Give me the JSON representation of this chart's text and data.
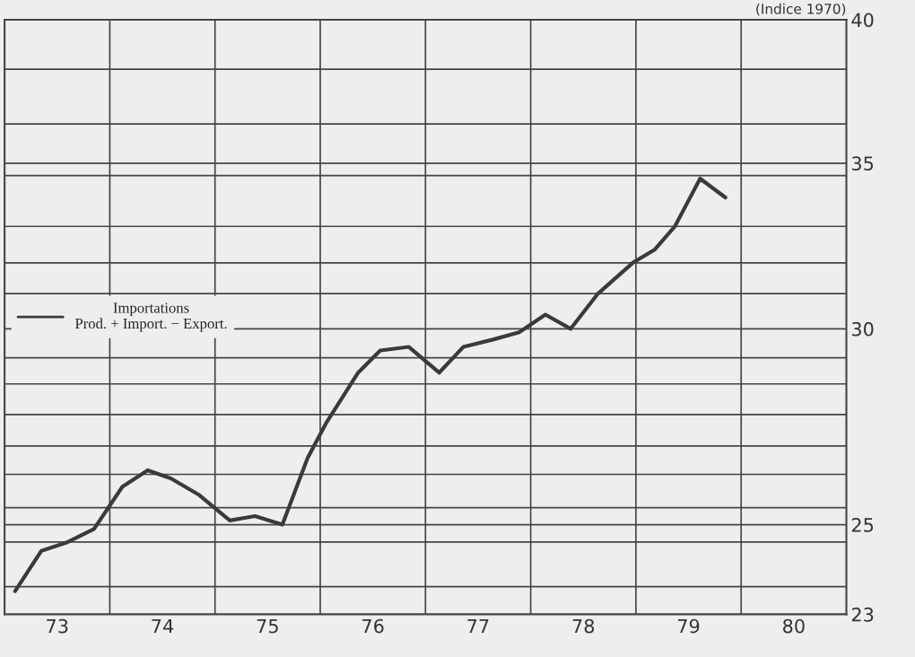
{
  "chart_data": {
    "type": "line",
    "subtitle": "(Indice 1970)",
    "x": [
      72.6,
      72.85,
      73.1,
      73.35,
      73.62,
      73.86,
      74.08,
      74.35,
      74.64,
      74.88,
      75.14,
      75.38,
      75.56,
      75.86,
      76.07,
      76.34,
      76.63,
      76.86,
      77.14,
      77.39,
      77.64,
      77.88,
      78.14,
      78.47,
      78.68,
      78.87,
      79.11,
      79.35
    ],
    "series": [
      {
        "name": "Importations\nProd. + Import. − Export.",
        "color": "#3a3a3a",
        "values": [
          23.5,
          24.4,
          24.6,
          24.9,
          25.9,
          26.3,
          26.1,
          25.7,
          25.1,
          25.2,
          25.0,
          26.6,
          27.5,
          28.8,
          29.4,
          29.5,
          28.8,
          29.5,
          29.7,
          29.9,
          30.4,
          30.0,
          31.0,
          31.9,
          32.3,
          33.0,
          34.5,
          33.9
        ]
      }
    ],
    "xlim": [
      72.5,
      80.5
    ],
    "xticks": [
      73,
      74,
      75,
      76,
      77,
      78,
      79,
      80,
      {
        "value": 73.5,
        "label": null
      },
      {
        "value": 74.5,
        "label": null
      },
      {
        "value": 75.5,
        "label": null
      },
      {
        "value": 76.5,
        "label": null
      },
      {
        "value": 77.5,
        "label": null
      },
      {
        "value": 78.5,
        "label": null
      },
      {
        "value": 79.5,
        "label": null
      }
    ],
    "ylim": [
      23,
      40
    ],
    "log": "y",
    "yticks": [
      23,
      25,
      30,
      35,
      40,
      {
        "value": 38.2,
        "label": null
      },
      {
        "value": 36.3,
        "label": null
      },
      {
        "value": 34.6,
        "label": null
      },
      {
        "value": 33,
        "label": null
      },
      {
        "value": 31.9,
        "label": null
      },
      {
        "value": 31,
        "label": null
      },
      {
        "value": 29.2,
        "label": null
      },
      {
        "value": 28.5,
        "label": null
      },
      {
        "value": 27.7,
        "label": null
      },
      {
        "value": 26.9,
        "label": null
      },
      {
        "value": 26.2,
        "label": null
      },
      {
        "value": 25.4,
        "label": null
      },
      {
        "value": 24.6,
        "label": null
      },
      {
        "value": 23.6,
        "label": null
      }
    ],
    "grid": true,
    "legend": "left",
    "marker": "none",
    "line_style": "solid"
  }
}
